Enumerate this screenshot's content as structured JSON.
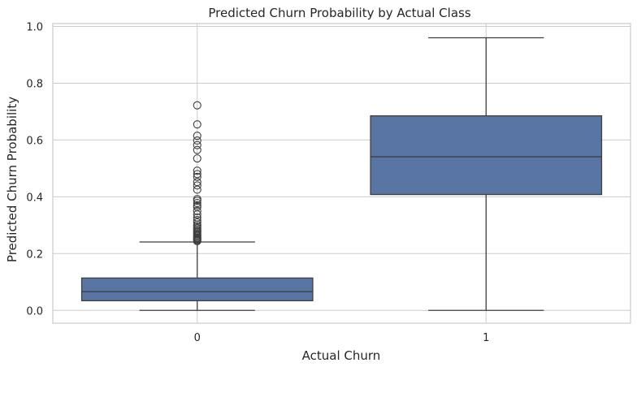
{
  "chart_data": {
    "type": "box",
    "title": "Predicted Churn Probability by Actual Class",
    "xlabel": "Actual Churn",
    "ylabel": "Predicted Churn Probability",
    "ylim": [
      -0.045,
      1.01
    ],
    "yticks": [
      0.0,
      0.2,
      0.4,
      0.6,
      0.8,
      1.0
    ],
    "ytick_labels": [
      "0.0",
      "0.2",
      "0.4",
      "0.6",
      "0.8",
      "1.0"
    ],
    "grid": true,
    "categories": [
      "0",
      "1"
    ],
    "boxes": [
      {
        "category": "0",
        "whisker_low": 0.0,
        "q1": 0.034,
        "median": 0.066,
        "q3": 0.114,
        "whisker_high": 0.241,
        "outliers": [
          0.244,
          0.247,
          0.25,
          0.253,
          0.256,
          0.26,
          0.264,
          0.268,
          0.272,
          0.276,
          0.28,
          0.285,
          0.29,
          0.296,
          0.302,
          0.31,
          0.318,
          0.327,
          0.338,
          0.35,
          0.364,
          0.37,
          0.378,
          0.386,
          0.392,
          0.425,
          0.44,
          0.452,
          0.47,
          0.48,
          0.492,
          0.535,
          0.565,
          0.582,
          0.598,
          0.615,
          0.655,
          0.722
        ]
      },
      {
        "category": "1",
        "whisker_low": 0.0,
        "q1": 0.408,
        "median": 0.541,
        "q3": 0.685,
        "whisker_high": 0.96,
        "outliers": []
      }
    ],
    "box_color": "#5875a4",
    "line_color": "#3f3f3f"
  }
}
